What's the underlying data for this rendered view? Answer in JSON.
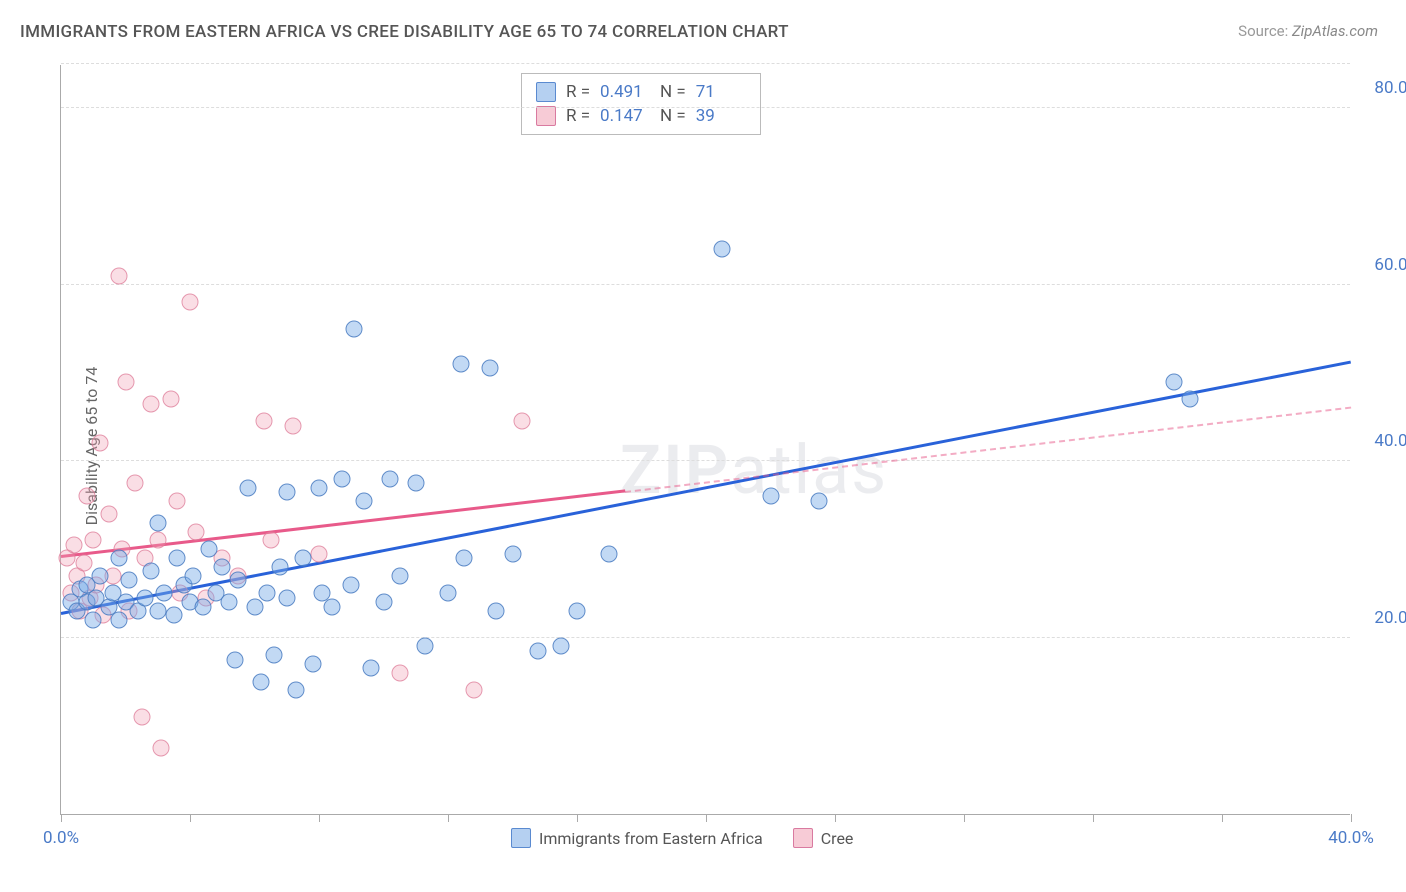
{
  "title": "IMMIGRANTS FROM EASTERN AFRICA VS CREE DISABILITY AGE 65 TO 74 CORRELATION CHART",
  "source_label": "Source:",
  "source_value": "ZipAtlas.com",
  "ylabel": "Disability Age 65 to 74",
  "watermark": "ZIPatlas",
  "chart": {
    "type": "scatter",
    "xlim": [
      0,
      40
    ],
    "ylim": [
      0,
      85
    ],
    "x_ticks": [
      0,
      4,
      8,
      12,
      16,
      20,
      24,
      28,
      32,
      36,
      40
    ],
    "x_tick_labels": {
      "0": "0.0%",
      "40": "40.0%"
    },
    "y_gridlines": [
      20,
      40,
      60,
      80
    ],
    "y_tick_labels": {
      "20": "20.0%",
      "40": "40.0%",
      "60": "60.0%",
      "80": "80.0%"
    },
    "background_color": "#ffffff",
    "grid_color": "#dddddd",
    "axis_color": "#aaaaaa",
    "label_color": "#4a7ac7",
    "marker_size": 17,
    "series": [
      {
        "name": "Immigrants from Eastern Africa",
        "key": "a",
        "marker_fill": "rgba(120,170,230,0.45)",
        "marker_stroke": "rgba(70,120,190,0.8)",
        "trend_color": "#2962d9",
        "trend": {
          "x1": 0,
          "y1": 22.5,
          "x2": 40,
          "y2": 51,
          "solid_until": 40
        },
        "R": "0.491",
        "N": "71",
        "points": [
          [
            0.3,
            24
          ],
          [
            0.5,
            23
          ],
          [
            0.6,
            25.5
          ],
          [
            0.8,
            26
          ],
          [
            0.8,
            24
          ],
          [
            1.0,
            22
          ],
          [
            1.1,
            24.5
          ],
          [
            1.2,
            27
          ],
          [
            1.5,
            23.5
          ],
          [
            1.6,
            25
          ],
          [
            1.8,
            29
          ],
          [
            1.8,
            22
          ],
          [
            2.0,
            24
          ],
          [
            2.1,
            26.5
          ],
          [
            2.4,
            23
          ],
          [
            2.6,
            24.5
          ],
          [
            2.8,
            27.5
          ],
          [
            3.0,
            33
          ],
          [
            3.0,
            23
          ],
          [
            3.2,
            25
          ],
          [
            3.5,
            22.5
          ],
          [
            3.6,
            29
          ],
          [
            3.8,
            26
          ],
          [
            4.0,
            24
          ],
          [
            4.1,
            27
          ],
          [
            4.4,
            23.5
          ],
          [
            4.6,
            30
          ],
          [
            4.8,
            25
          ],
          [
            5.0,
            28
          ],
          [
            5.2,
            24
          ],
          [
            5.4,
            17.5
          ],
          [
            5.5,
            26.5
          ],
          [
            5.8,
            37
          ],
          [
            6.0,
            23.5
          ],
          [
            6.2,
            15
          ],
          [
            6.4,
            25
          ],
          [
            6.6,
            18
          ],
          [
            6.8,
            28
          ],
          [
            7.0,
            24.5
          ],
          [
            7.0,
            36.5
          ],
          [
            7.3,
            14
          ],
          [
            7.5,
            29
          ],
          [
            7.8,
            17
          ],
          [
            8.0,
            37
          ],
          [
            8.1,
            25
          ],
          [
            8.4,
            23.5
          ],
          [
            8.7,
            38
          ],
          [
            9.0,
            26
          ],
          [
            9.1,
            55
          ],
          [
            9.4,
            35.5
          ],
          [
            9.6,
            16.5
          ],
          [
            10.0,
            24
          ],
          [
            10.2,
            38
          ],
          [
            10.5,
            27
          ],
          [
            11.0,
            37.5
          ],
          [
            11.3,
            19
          ],
          [
            12.0,
            25
          ],
          [
            12.4,
            51
          ],
          [
            12.5,
            29
          ],
          [
            13.3,
            50.5
          ],
          [
            13.5,
            23
          ],
          [
            14.0,
            29.5
          ],
          [
            14.8,
            18.5
          ],
          [
            15.5,
            19
          ],
          [
            16.0,
            23
          ],
          [
            17.0,
            29.5
          ],
          [
            20.5,
            64
          ],
          [
            22.0,
            36
          ],
          [
            23.5,
            35.5
          ],
          [
            34.5,
            49
          ],
          [
            35.0,
            47
          ]
        ]
      },
      {
        "name": "Cree",
        "key": "b",
        "marker_fill": "rgba(240,160,180,0.35)",
        "marker_stroke": "rgba(220,120,150,0.7)",
        "trend_color": "#e85a8a",
        "trend": {
          "x1": 0,
          "y1": 29,
          "x2": 40,
          "y2": 46,
          "solid_until": 17.5
        },
        "R": "0.147",
        "N": "39",
        "points": [
          [
            0.2,
            29
          ],
          [
            0.3,
            25
          ],
          [
            0.4,
            30.5
          ],
          [
            0.5,
            27
          ],
          [
            0.6,
            23
          ],
          [
            0.7,
            28.5
          ],
          [
            0.8,
            36
          ],
          [
            0.9,
            24.5
          ],
          [
            1.0,
            31
          ],
          [
            1.1,
            26
          ],
          [
            1.2,
            42
          ],
          [
            1.3,
            22.5
          ],
          [
            1.5,
            34
          ],
          [
            1.6,
            27
          ],
          [
            1.8,
            61
          ],
          [
            1.9,
            30
          ],
          [
            2.0,
            49
          ],
          [
            2.1,
            23
          ],
          [
            2.3,
            37.5
          ],
          [
            2.5,
            11
          ],
          [
            2.6,
            29
          ],
          [
            2.8,
            46.5
          ],
          [
            3.0,
            31
          ],
          [
            3.1,
            7.5
          ],
          [
            3.4,
            47
          ],
          [
            3.6,
            35.5
          ],
          [
            3.7,
            25
          ],
          [
            4.0,
            58
          ],
          [
            4.2,
            32
          ],
          [
            4.5,
            24.5
          ],
          [
            5.0,
            29
          ],
          [
            5.5,
            27
          ],
          [
            6.3,
            44.5
          ],
          [
            6.5,
            31
          ],
          [
            7.2,
            44
          ],
          [
            8.0,
            29.5
          ],
          [
            10.5,
            16
          ],
          [
            12.8,
            14
          ],
          [
            14.3,
            44.5
          ]
        ]
      }
    ]
  },
  "legend_top_labels": {
    "R": "R =",
    "N": "N ="
  },
  "legend_bottom": [
    "Immigrants from Eastern Africa",
    "Cree"
  ]
}
